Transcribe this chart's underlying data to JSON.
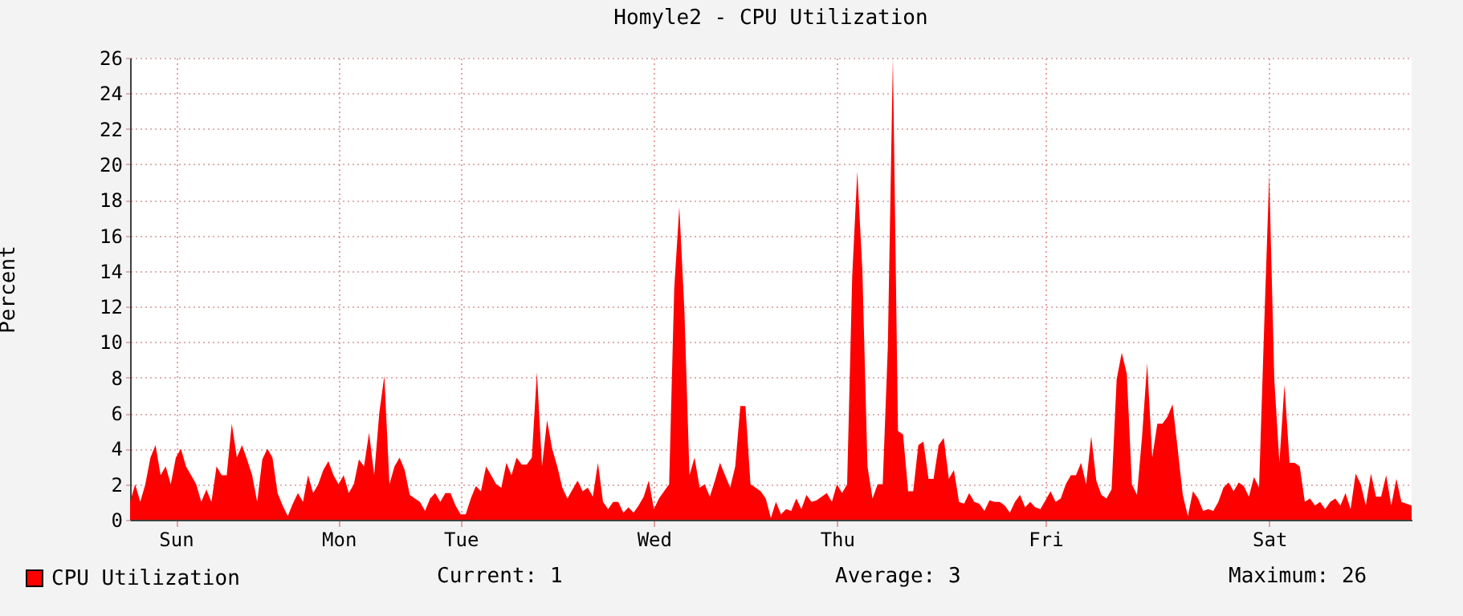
{
  "chart_data": {
    "type": "area",
    "title": "Homyle2 - CPU Utilization",
    "ylabel": "Percent",
    "categories": [
      null,
      null,
      null,
      null,
      null,
      null,
      null,
      null,
      null,
      "Sun",
      null,
      null,
      null,
      null,
      null,
      null,
      null,
      null,
      null,
      null,
      null,
      null,
      null,
      null,
      null,
      null,
      null,
      null,
      null,
      null,
      null,
      null,
      null,
      null,
      null,
      null,
      null,
      null,
      null,
      null,
      null,
      "Mon",
      null,
      null,
      null,
      null,
      null,
      null,
      null,
      null,
      null,
      null,
      null,
      null,
      null,
      null,
      null,
      null,
      null,
      null,
      null,
      null,
      null,
      null,
      null,
      "Tue",
      null,
      null,
      null,
      null,
      null,
      null,
      null,
      null,
      null,
      null,
      null,
      null,
      null,
      null,
      null,
      null,
      null,
      null,
      null,
      null,
      null,
      null,
      null,
      null,
      null,
      null,
      null,
      null,
      null,
      null,
      null,
      null,
      null,
      null,
      null,
      null,
      null,
      "Wed",
      null,
      null,
      null,
      null,
      null,
      null,
      null,
      null,
      null,
      null,
      null,
      null,
      null,
      null,
      null,
      null,
      null,
      null,
      null,
      null,
      null,
      null,
      null,
      null,
      null,
      null,
      null,
      null,
      null,
      null,
      null,
      null,
      null,
      null,
      null,
      "Thu",
      null,
      null,
      null,
      null,
      null,
      null,
      null,
      null,
      null,
      null,
      null,
      null,
      null,
      null,
      null,
      null,
      null,
      null,
      null,
      null,
      null,
      null,
      null,
      null,
      null,
      null,
      null,
      null,
      null,
      null,
      null,
      null,
      null,
      null,
      null,
      null,
      null,
      null,
      null,
      null,
      "Fri",
      null,
      null,
      null,
      null,
      null,
      null,
      null,
      null,
      null,
      null,
      null,
      null,
      null,
      null,
      null,
      null,
      null,
      null,
      null,
      null,
      null,
      null,
      null,
      null,
      null,
      null,
      null,
      null,
      null,
      null,
      null,
      null,
      null,
      null,
      null,
      null,
      null,
      null,
      null,
      null,
      null,
      null,
      null,
      "Sat",
      null,
      null,
      null,
      null,
      null,
      null,
      null,
      null,
      null,
      null,
      null,
      null,
      null,
      null,
      null,
      null,
      null,
      null,
      null,
      null,
      null,
      null,
      null,
      null,
      null,
      null,
      null,
      null
    ],
    "series": [
      {
        "name": "CPU Utilization",
        "color": "#ff0000",
        "values": [
          1.0,
          2.0,
          1.0,
          2.0,
          3.5,
          4.2,
          2.5,
          3.0,
          2.0,
          3.5,
          4.0,
          3.0,
          2.5,
          2.0,
          1.0,
          1.7,
          1.0,
          3.0,
          2.5,
          2.5,
          5.4,
          3.5,
          4.2,
          3.4,
          2.5,
          1.0,
          3.4,
          4.0,
          3.5,
          1.5,
          0.8,
          0.2,
          0.9,
          1.5,
          1.0,
          2.5,
          1.5,
          2.0,
          2.8,
          3.3,
          2.5,
          2.0,
          2.5,
          1.5,
          2.0,
          3.4,
          3.0,
          4.9,
          2.5,
          6.0,
          8.1,
          2.0,
          3.0,
          3.5,
          2.8,
          1.4,
          1.2,
          1.0,
          0.5,
          1.2,
          1.5,
          1.0,
          1.5,
          1.5,
          0.8,
          0.3,
          0.3,
          1.2,
          1.9,
          1.6,
          3.0,
          2.5,
          2.0,
          1.8,
          3.2,
          2.5,
          3.5,
          3.1,
          3.1,
          3.5,
          8.3,
          3.0,
          5.6,
          4.0,
          3.0,
          1.8,
          1.2,
          1.7,
          2.2,
          1.6,
          1.8,
          1.3,
          3.2,
          1.0,
          0.6,
          1.0,
          1.0,
          0.4,
          0.7,
          0.4,
          0.8,
          1.3,
          2.2,
          0.6,
          1.2,
          1.6,
          2.0,
          13.0,
          17.6,
          11.8,
          2.5,
          3.5,
          1.8,
          2.0,
          1.3,
          2.2,
          3.2,
          2.5,
          1.8,
          3.0,
          6.4,
          6.4,
          2.0,
          1.8,
          1.6,
          1.2,
          0.1,
          1.0,
          0.3,
          0.6,
          0.5,
          1.2,
          0.6,
          1.4,
          1.0,
          1.1,
          1.3,
          1.5,
          1.0,
          2.0,
          1.5,
          2.0,
          13.7,
          19.6,
          14.0,
          3.0,
          1.2,
          2.0,
          2.0,
          9.7,
          26,
          5.0,
          4.8,
          1.6,
          1.6,
          4.2,
          4.4,
          2.3,
          2.3,
          4.2,
          4.6,
          2.3,
          2.8,
          1.0,
          0.9,
          1.5,
          1.0,
          0.9,
          0.5,
          1.1,
          1.0,
          1.0,
          0.8,
          0.4,
          1.0,
          1.4,
          0.7,
          1.0,
          0.7,
          0.6,
          1.1,
          1.6,
          1.0,
          1.2,
          2.0,
          2.5,
          2.5,
          3.2,
          2.0,
          4.7,
          2.2,
          1.4,
          1.2,
          1.7,
          7.9,
          9.4,
          8.2,
          2.0,
          1.4,
          4.7,
          8.8,
          3.5,
          5.4,
          5.4,
          5.8,
          6.5,
          4.0,
          1.4,
          0.2,
          1.6,
          1.2,
          0.5,
          0.6,
          0.5,
          1.0,
          1.8,
          2.1,
          1.6,
          2.1,
          1.9,
          1.3,
          2.4,
          1.8,
          10.8,
          19.4,
          7.9,
          3.2,
          7.6,
          3.2,
          3.2,
          3.0,
          1.0,
          1.2,
          0.8,
          1.0,
          0.6,
          1.0,
          1.2,
          0.8,
          1.5,
          0.6,
          2.6,
          2.0,
          0.8,
          2.6,
          1.3,
          1.3,
          2.5,
          0.8,
          2.3,
          1.0,
          0.9,
          0.8
        ]
      }
    ],
    "ylim": [
      0,
      26
    ],
    "yticks": [
      0,
      2,
      4,
      6,
      8,
      10,
      12,
      14,
      16,
      18,
      20,
      22,
      24,
      26
    ],
    "grid": true,
    "legend": "bottom left",
    "annotations": [
      "Current: 1",
      "Average: 3",
      "Maximum: 26"
    ]
  }
}
